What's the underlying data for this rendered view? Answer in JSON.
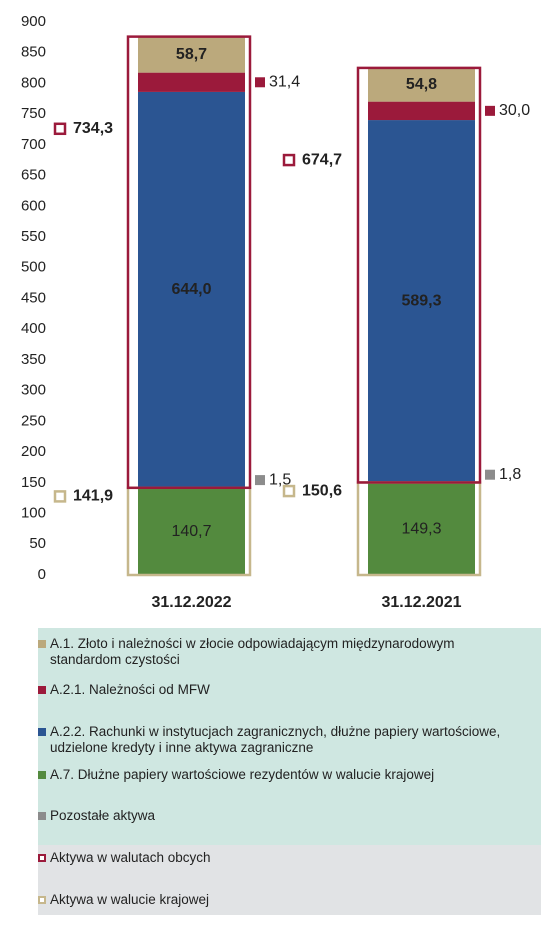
{
  "chart_data": {
    "type": "bar",
    "stacked": true,
    "categories": [
      "31.12.2022",
      "31.12.2021"
    ],
    "ylim": [
      0,
      900
    ],
    "yticks": [
      0,
      50,
      100,
      150,
      200,
      250,
      300,
      350,
      400,
      450,
      500,
      550,
      600,
      650,
      700,
      750,
      800,
      850,
      900
    ],
    "series": [
      {
        "name": "A.7. Dłużne papiery wartościowe rezydentów w walucie krajowej",
        "color": "#538a3e",
        "values": [
          140.7,
          149.3
        ],
        "value_labels": [
          "140,7",
          "149,3"
        ]
      },
      {
        "name": "Pozostałe aktywa",
        "color": "#8c8c8c",
        "values": [
          1.5,
          1.8
        ],
        "value_labels": [
          "1,5",
          "1,8"
        ]
      },
      {
        "name": "A.2.2. Rachunki w instytucjach zagranicznych, dłużne papiery wartościowe, udzielone kredyty i inne aktywa zagraniczne",
        "color": "#2b5592",
        "values": [
          644.0,
          589.3
        ],
        "value_labels": [
          "644,0",
          "589,3"
        ]
      },
      {
        "name": "A.2.1. Należności od MFW",
        "color": "#9b1a3b",
        "values": [
          31.4,
          30.0
        ],
        "value_labels": [
          "31,4",
          "30,0"
        ]
      },
      {
        "name": "A.1. Złoto i należności w złocie odpowiadającym międzynarodowym standardom czystości",
        "color": "#bba97c",
        "values": [
          58.7,
          54.8
        ],
        "value_labels": [
          "58,7",
          "54,8"
        ]
      }
    ],
    "outlines": [
      {
        "name": "Aktywa w walutach obcych",
        "color": "#9b1a3b",
        "values": [
          734.3,
          674.7
        ],
        "value_labels": [
          "734,3",
          "674,7"
        ]
      },
      {
        "name": "Aktywa w walucie krajowej",
        "color": "#c6b78c",
        "values": [
          141.9,
          150.6
        ],
        "value_labels": [
          "141,9",
          "150,6"
        ]
      }
    ]
  }
}
